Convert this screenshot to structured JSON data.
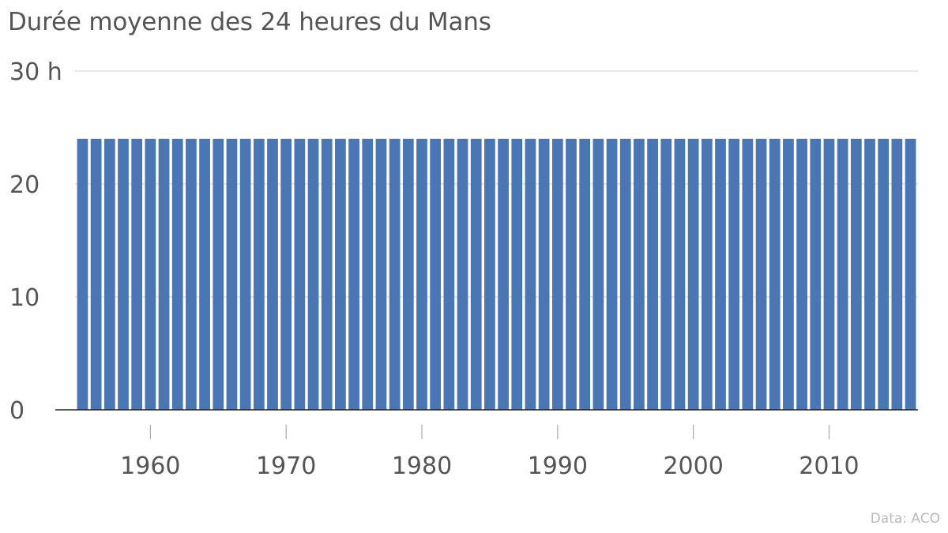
{
  "title": "Durée moyenne des 24 heures du Mans",
  "source": "Data: ACO",
  "chart_data": {
    "type": "bar",
    "title": "Durée moyenne des 24 heures du Mans",
    "xlabel": "",
    "ylabel": "",
    "unit": "h",
    "x_start": 1955,
    "x_end": 2016,
    "x": [
      1955,
      1956,
      1957,
      1958,
      1959,
      1960,
      1961,
      1962,
      1963,
      1964,
      1965,
      1966,
      1967,
      1968,
      1969,
      1970,
      1971,
      1972,
      1973,
      1974,
      1975,
      1976,
      1977,
      1978,
      1979,
      1980,
      1981,
      1982,
      1983,
      1984,
      1985,
      1986,
      1987,
      1988,
      1989,
      1990,
      1991,
      1992,
      1993,
      1994,
      1995,
      1996,
      1997,
      1998,
      1999,
      2000,
      2001,
      2002,
      2003,
      2004,
      2005,
      2006,
      2007,
      2008,
      2009,
      2010,
      2011,
      2012,
      2013,
      2014,
      2015,
      2016
    ],
    "value": 24,
    "ylim": [
      0,
      30
    ],
    "y_ticks": [
      0,
      10,
      20,
      30
    ],
    "y_tick_labels": [
      "0",
      "10",
      "20",
      "30 h"
    ],
    "x_ticks": [
      1960,
      1970,
      1980,
      1990,
      2000,
      2010
    ],
    "x_tick_labels": [
      "1960",
      "1970",
      "1980",
      "1990",
      "2000",
      "2010"
    ],
    "bar_color": "#4a76b3",
    "grid": true,
    "grid_color": "#d9d9d9",
    "axis_color": "#222222"
  }
}
